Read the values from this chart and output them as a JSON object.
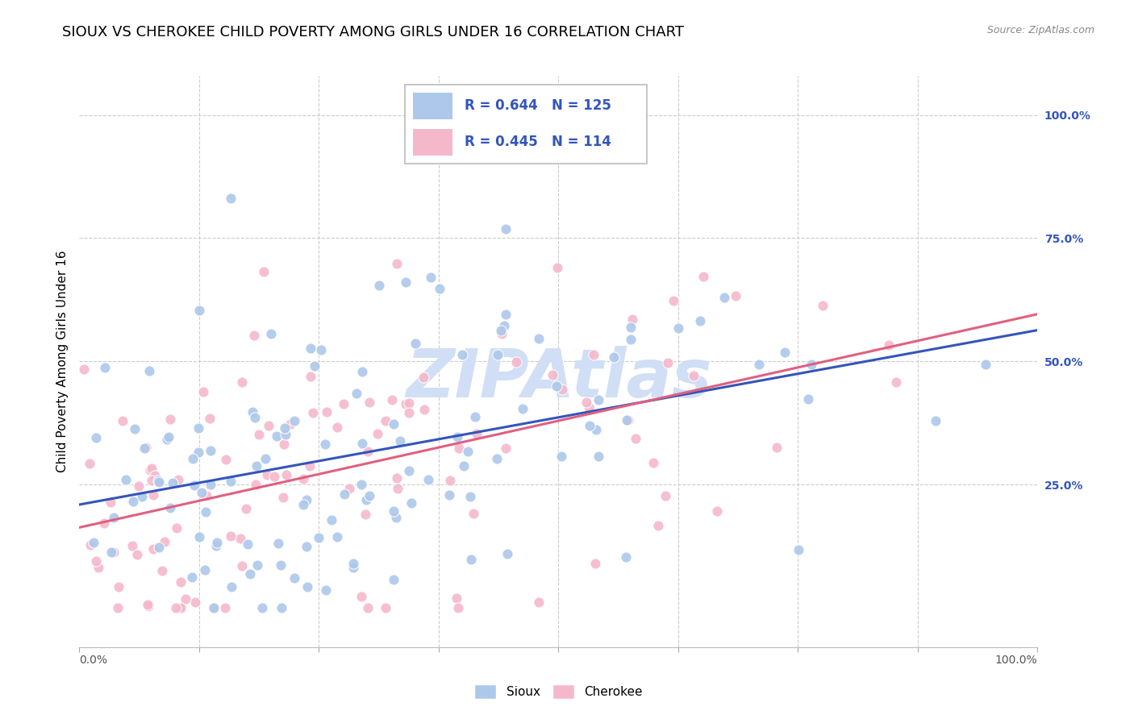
{
  "title": "SIOUX VS CHEROKEE CHILD POVERTY AMONG GIRLS UNDER 16 CORRELATION CHART",
  "source": "Source: ZipAtlas.com",
  "ylabel": "Child Poverty Among Girls Under 16",
  "sioux_R": 0.644,
  "sioux_N": 125,
  "cherokee_R": 0.445,
  "cherokee_N": 114,
  "sioux_color": "#adc8ea",
  "cherokee_color": "#f5b8cb",
  "sioux_line_color": "#3355bb",
  "cherokee_line_color": "#e06080",
  "legend_text_color": "#3355bb",
  "watermark": "ZIPAtlas",
  "watermark_color": "#d0dff5",
  "title_fontsize": 13,
  "axis_label_fontsize": 11,
  "legend_fontsize": 13,
  "tick_fontsize": 10,
  "background_color": "#ffffff",
  "grid_color": "#cccccc",
  "xlim": [
    0.0,
    1.0
  ],
  "ylim": [
    -0.08,
    1.08
  ],
  "yticks": [
    0.25,
    0.5,
    0.75,
    1.0
  ],
  "ytick_labels": [
    "25.0%",
    "50.0%",
    "75.0%",
    "100.0%"
  ],
  "seed_sioux": 42,
  "seed_cherokee": 137
}
